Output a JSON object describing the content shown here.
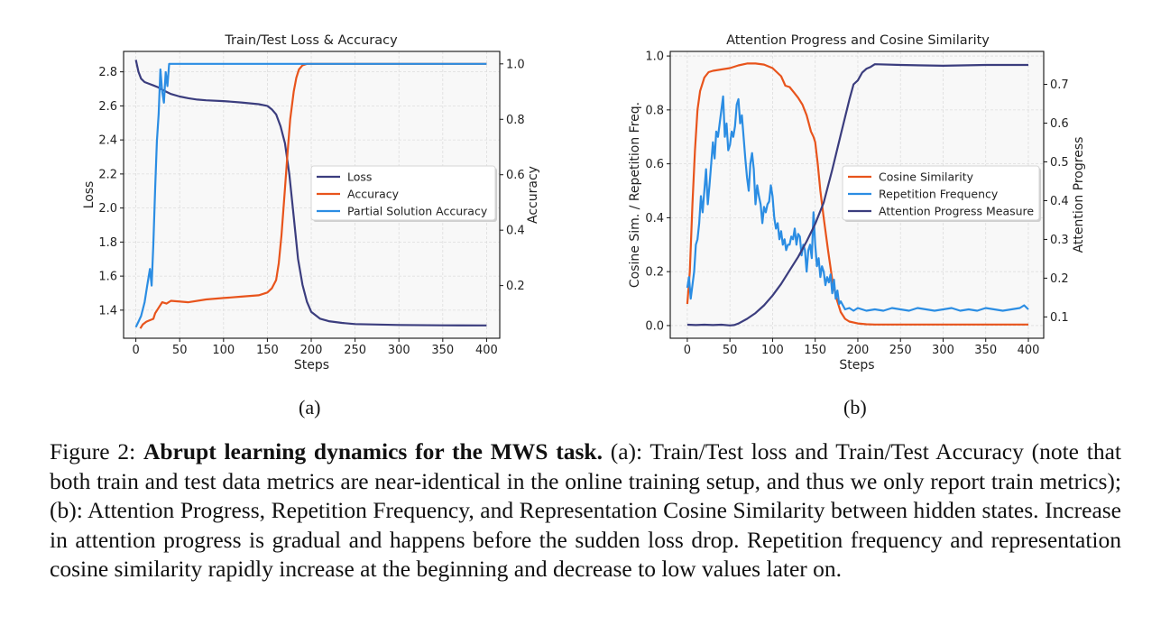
{
  "figure": {
    "sublabels": [
      "(a)",
      "(b)"
    ],
    "caption": {
      "prefix": "Figure 2: ",
      "bold": "Abrupt learning dynamics for the MWS task.",
      "text": " (a): Train/Test loss and Train/Test Accuracy (note that both train and test data metrics are near-identical in the online training setup, and thus we only report train metrics); (b): Attention Progress, Repetition Frequency, and Representation Cosine Similarity between hidden states. Increase in attention progress is gradual and happens before the sudden loss drop. Repetition frequency and representation cosine similarity rapidly increase at the beginning and decrease to low values later on."
    }
  },
  "colors": {
    "navy": "#3b3d7e",
    "orange": "#e8541c",
    "blue": "#2b8de3",
    "plot_bg": "#f8f8f8",
    "grid": "#dddddd"
  },
  "chart_data": [
    {
      "type": "line",
      "title": "Train/Test Loss & Accuracy",
      "xlabel": "Steps",
      "ylabel": "Loss",
      "y2label": "Accuracy",
      "xlim": [
        -14,
        415
      ],
      "ylim": [
        1.235,
        2.92
      ],
      "y2lim": [
        0.01,
        1.045
      ],
      "xticks": [
        0,
        50,
        100,
        150,
        200,
        250,
        300,
        350,
        400
      ],
      "yticks": [
        1.4,
        1.6,
        1.8,
        2.0,
        2.2,
        2.4,
        2.6,
        2.8
      ],
      "y2ticks": [
        0.2,
        0.4,
        0.6,
        0.8,
        1.0
      ],
      "grid": true,
      "legend": "center-right",
      "series": [
        {
          "name": "Loss",
          "axis": "left",
          "color": "#3b3d7e",
          "x": [
            0,
            3,
            6,
            10,
            15,
            20,
            25,
            30,
            40,
            50,
            60,
            70,
            80,
            100,
            120,
            140,
            150,
            155,
            160,
            165,
            170,
            175,
            180,
            185,
            190,
            195,
            200,
            210,
            220,
            235,
            250,
            300,
            350,
            400
          ],
          "y": [
            2.87,
            2.8,
            2.76,
            2.74,
            2.73,
            2.72,
            2.71,
            2.695,
            2.67,
            2.655,
            2.645,
            2.637,
            2.633,
            2.628,
            2.62,
            2.61,
            2.6,
            2.58,
            2.55,
            2.48,
            2.38,
            2.2,
            1.95,
            1.7,
            1.55,
            1.45,
            1.39,
            1.35,
            1.335,
            1.325,
            1.318,
            1.313,
            1.311,
            1.31
          ]
        },
        {
          "name": "Accuracy",
          "axis": "right",
          "color": "#e8541c",
          "x": [
            5,
            8,
            12,
            16,
            20,
            22,
            26,
            30,
            35,
            40,
            60,
            80,
            100,
            120,
            140,
            150,
            155,
            160,
            163,
            166,
            170,
            173,
            176,
            180,
            183,
            186,
            190,
            195,
            400
          ],
          "y": [
            0.045,
            0.06,
            0.07,
            0.075,
            0.08,
            0.1,
            0.12,
            0.14,
            0.135,
            0.145,
            0.14,
            0.15,
            0.155,
            0.16,
            0.165,
            0.175,
            0.19,
            0.22,
            0.28,
            0.38,
            0.55,
            0.68,
            0.8,
            0.9,
            0.95,
            0.98,
            0.995,
            1.0,
            1.0
          ]
        },
        {
          "name": "Partial Solution Accuracy",
          "axis": "right",
          "color": "#2b8de3",
          "x": [
            0,
            3,
            6,
            10,
            13,
            16,
            18,
            20,
            22,
            24,
            26,
            28,
            30,
            32,
            34,
            36,
            38,
            40,
            400
          ],
          "y": [
            0.05,
            0.07,
            0.09,
            0.14,
            0.2,
            0.26,
            0.2,
            0.35,
            0.55,
            0.72,
            0.82,
            0.98,
            0.9,
            0.86,
            0.97,
            0.92,
            1.0,
            1.0,
            1.0
          ]
        }
      ]
    },
    {
      "type": "line",
      "title": "Attention Progress and Cosine Similarity",
      "xlabel": "Steps",
      "ylabel": "Cosine Sim. / Repetition Freq.",
      "y2label": "Attention Progress",
      "xlim": [
        -20,
        418
      ],
      "ylim": [
        -0.047,
        1.017
      ],
      "y2lim": [
        0.045,
        0.785
      ],
      "xticks": [
        0,
        50,
        100,
        150,
        200,
        250,
        300,
        350,
        400
      ],
      "yticks": [
        0.0,
        0.2,
        0.4,
        0.6,
        0.8,
        1.0
      ],
      "y2ticks": [
        0.1,
        0.2,
        0.3,
        0.4,
        0.5,
        0.6,
        0.7
      ],
      "grid": true,
      "legend": "center-right",
      "series": [
        {
          "name": "Cosine Similarity",
          "axis": "left",
          "color": "#e8541c",
          "x": [
            0,
            3,
            6,
            9,
            12,
            15,
            20,
            25,
            30,
            40,
            50,
            60,
            70,
            80,
            90,
            100,
            110,
            115,
            120,
            125,
            130,
            135,
            140,
            145,
            148,
            150,
            153,
            156,
            160,
            165,
            170,
            175,
            180,
            185,
            190,
            200,
            210,
            220,
            400
          ],
          "y": [
            0.08,
            0.2,
            0.45,
            0.65,
            0.8,
            0.87,
            0.92,
            0.94,
            0.945,
            0.95,
            0.955,
            0.965,
            0.972,
            0.972,
            0.968,
            0.955,
            0.925,
            0.89,
            0.885,
            0.865,
            0.845,
            0.82,
            0.78,
            0.72,
            0.7,
            0.68,
            0.6,
            0.5,
            0.4,
            0.28,
            0.17,
            0.1,
            0.05,
            0.025,
            0.015,
            0.008,
            0.005,
            0.004,
            0.004
          ]
        },
        {
          "name": "Repetition Frequency",
          "axis": "left",
          "color": "#2b8de3",
          "x": [
            0,
            2,
            4,
            6,
            8,
            10,
            12,
            14,
            16,
            18,
            20,
            22,
            24,
            26,
            28,
            30,
            32,
            34,
            36,
            38,
            40,
            42,
            44,
            46,
            48,
            50,
            52,
            54,
            56,
            58,
            60,
            62,
            64,
            66,
            68,
            70,
            72,
            74,
            76,
            78,
            80,
            82,
            84,
            86,
            88,
            90,
            92,
            94,
            96,
            98,
            100,
            102,
            104,
            106,
            108,
            110,
            112,
            114,
            116,
            118,
            120,
            122,
            124,
            126,
            128,
            130,
            132,
            134,
            136,
            138,
            140,
            142,
            144,
            146,
            148,
            150,
            152,
            154,
            156,
            158,
            160,
            162,
            164,
            166,
            168,
            170,
            172,
            174,
            176,
            178,
            180,
            185,
            190,
            195,
            200,
            210,
            220,
            230,
            240,
            250,
            260,
            270,
            280,
            290,
            300,
            310,
            320,
            330,
            340,
            350,
            360,
            370,
            380,
            390,
            395,
            400
          ],
          "y": [
            0.14,
            0.18,
            0.1,
            0.15,
            0.2,
            0.3,
            0.32,
            0.38,
            0.48,
            0.42,
            0.5,
            0.58,
            0.45,
            0.52,
            0.6,
            0.68,
            0.62,
            0.72,
            0.7,
            0.75,
            0.8,
            0.85,
            0.7,
            0.75,
            0.65,
            0.67,
            0.72,
            0.7,
            0.74,
            0.82,
            0.84,
            0.75,
            0.78,
            0.7,
            0.62,
            0.55,
            0.5,
            0.6,
            0.64,
            0.58,
            0.45,
            0.52,
            0.48,
            0.45,
            0.38,
            0.44,
            0.42,
            0.45,
            0.46,
            0.52,
            0.48,
            0.4,
            0.36,
            0.38,
            0.32,
            0.35,
            0.3,
            0.32,
            0.28,
            0.3,
            0.3,
            0.33,
            0.32,
            0.36,
            0.3,
            0.34,
            0.33,
            0.26,
            0.3,
            0.28,
            0.2,
            0.28,
            0.3,
            0.25,
            0.42,
            0.3,
            0.22,
            0.25,
            0.18,
            0.22,
            0.2,
            0.15,
            0.18,
            0.16,
            0.19,
            0.12,
            0.17,
            0.1,
            0.13,
            0.08,
            0.09,
            0.06,
            0.065,
            0.055,
            0.065,
            0.055,
            0.06,
            0.055,
            0.065,
            0.06,
            0.055,
            0.065,
            0.06,
            0.055,
            0.06,
            0.065,
            0.055,
            0.06,
            0.055,
            0.065,
            0.06,
            0.055,
            0.06,
            0.065,
            0.075,
            0.06
          ]
        },
        {
          "name": "Attention Progress Measure",
          "axis": "right",
          "color": "#3b3d7e",
          "x": [
            0,
            10,
            20,
            30,
            40,
            50,
            55,
            60,
            70,
            80,
            90,
            100,
            110,
            120,
            130,
            140,
            150,
            160,
            170,
            180,
            190,
            195,
            200,
            205,
            210,
            215,
            220,
            250,
            300,
            350,
            400
          ],
          "y": [
            0.08,
            0.079,
            0.08,
            0.079,
            0.08,
            0.078,
            0.079,
            0.083,
            0.095,
            0.11,
            0.13,
            0.155,
            0.185,
            0.22,
            0.255,
            0.295,
            0.34,
            0.395,
            0.48,
            0.57,
            0.66,
            0.7,
            0.71,
            0.73,
            0.74,
            0.745,
            0.752,
            0.75,
            0.748,
            0.75,
            0.75
          ]
        }
      ]
    }
  ]
}
